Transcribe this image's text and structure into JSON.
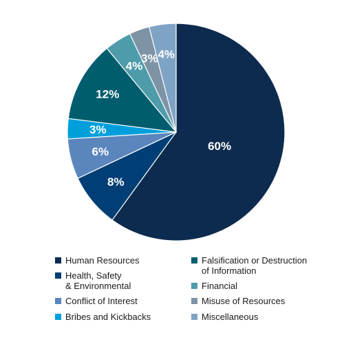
{
  "chart_data": {
    "type": "pie",
    "start_angle_deg": 0,
    "direction": "clockwise",
    "slices": [
      {
        "label": "Human Resources",
        "value": 60,
        "display": "60%",
        "color": "#0d2b4e"
      },
      {
        "label": "Health, Safety\n& Environmental",
        "value": 8,
        "display": "8%",
        "color": "#003f75"
      },
      {
        "label": "Conflict of Interest",
        "value": 6,
        "display": "6%",
        "color": "#5a86bd"
      },
      {
        "label": "Bribes and Kickbacks",
        "value": 3,
        "display": "3%",
        "color": "#009fdb"
      },
      {
        "label": "Falsification or Destruction\nof Information",
        "value": 12,
        "display": "12%",
        "color": "#005d6e"
      },
      {
        "label": "Financial",
        "value": 4,
        "display": "4%",
        "color": "#4e9caa"
      },
      {
        "label": "Misuse of Resources",
        "value": 3,
        "display": "3%",
        "color": "#7d93a6"
      },
      {
        "label": "Miscellaneous",
        "value": 4,
        "display": "4%",
        "color": "#7fa3c4"
      }
    ],
    "legend_position": "bottom"
  }
}
